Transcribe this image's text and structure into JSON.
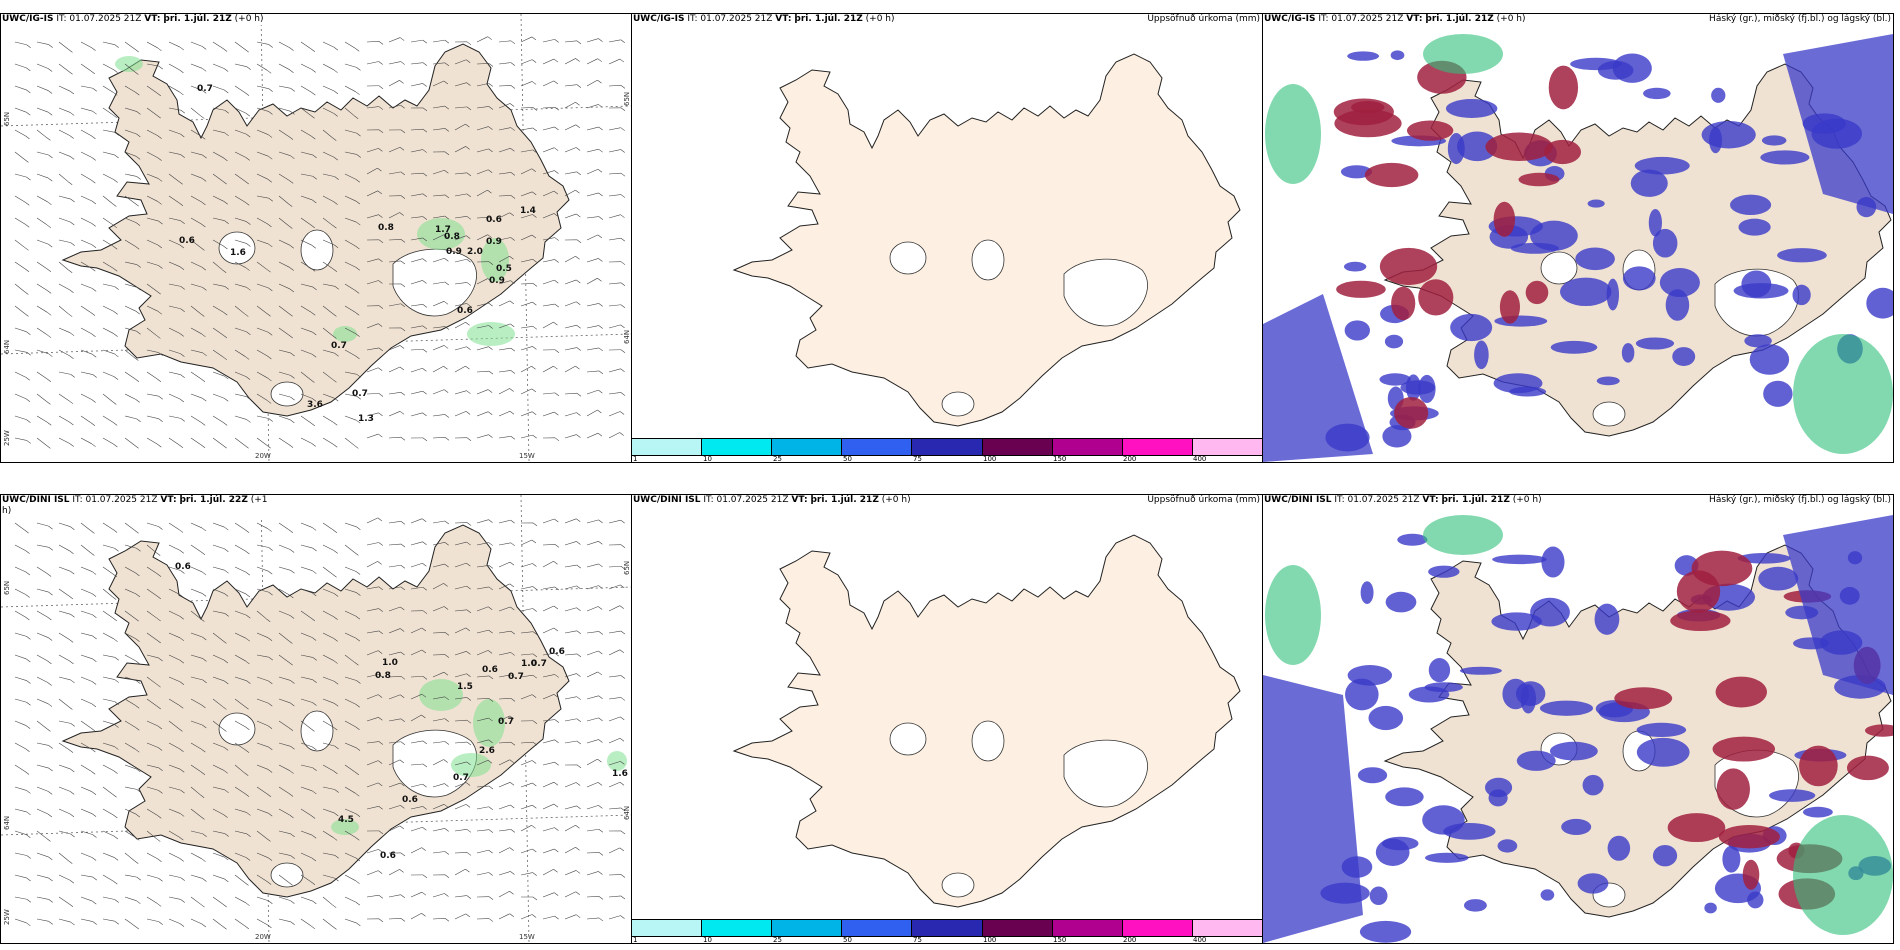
{
  "rows": [
    {
      "model": "UWC/IG-IS",
      "it_label": "IT:",
      "it_value": "01.07.2025 21Z",
      "vt_label": "VT:",
      "vt_value": "þri. 1.júl. 21Z",
      "offset": "(+0 h)",
      "left_axis": {
        "lat1": "65N",
        "lat2": "64N",
        "lat3": "25W",
        "lon1": "20W",
        "lon2": "15W"
      },
      "values": [
        "0.7",
        "1.4",
        "0.6",
        "0.8",
        "1.7",
        "0.8",
        "0.9",
        "0.6",
        "1.6",
        "0.9",
        "2.0",
        "0.5",
        "0.9",
        "0.6",
        "0.7",
        "0.7",
        "3.6",
        "1.3"
      ],
      "middle_title": "Uppsöfnuð úrkoma (mm)",
      "right_title": "Háský (gr.), miðský (fj.bl.) og lágský (bl.)"
    },
    {
      "model": "UWC/DINI ISL",
      "it_label": "IT:",
      "it_value": "01.07.2025 21Z",
      "vt_label": "VT:",
      "vt_value": "þri. 1.júl. 22Z",
      "offset": "(+1 h)",
      "mid_vt_value": "þri. 1.júl. 21Z",
      "mid_offset": "(+0 h)",
      "left_axis": {
        "lat1": "65N",
        "lat2": "64N",
        "lat3": "25W",
        "lon1": "20W",
        "lon2": "15W"
      },
      "values": [
        "0.6",
        "1.0",
        "0.8",
        "0.6",
        "1.0",
        "0.7",
        "0.6",
        "0.7",
        "1.5",
        "0.7",
        "2.6",
        "0.7",
        "0.6",
        "4.5",
        "0.6",
        "1.6"
      ],
      "middle_title": "Uppsöfnuð úrkoma (mm)",
      "right_title": "Háský (gr.), miðský (fj.bl.) og lágský (bl.)"
    }
  ],
  "colorbar": {
    "labels": [
      "1",
      "10",
      "25",
      "50",
      "75",
      "100",
      "150",
      "200",
      "400"
    ],
    "colors": [
      "#b8f5f5",
      "#00e8f0",
      "#00b4e8",
      "#3060f0",
      "#2828b0",
      "#6a0050",
      "#b00090",
      "#ff10c0",
      "#ffb8f0"
    ]
  },
  "colors": {
    "land": "#f0e2d2",
    "land_plain": "#fdf0e2",
    "precip_green": "#7fe08f",
    "high_cloud": "#2ec07a",
    "mid_cloud": "#a02040",
    "low_cloud": "#3a3ac8"
  }
}
